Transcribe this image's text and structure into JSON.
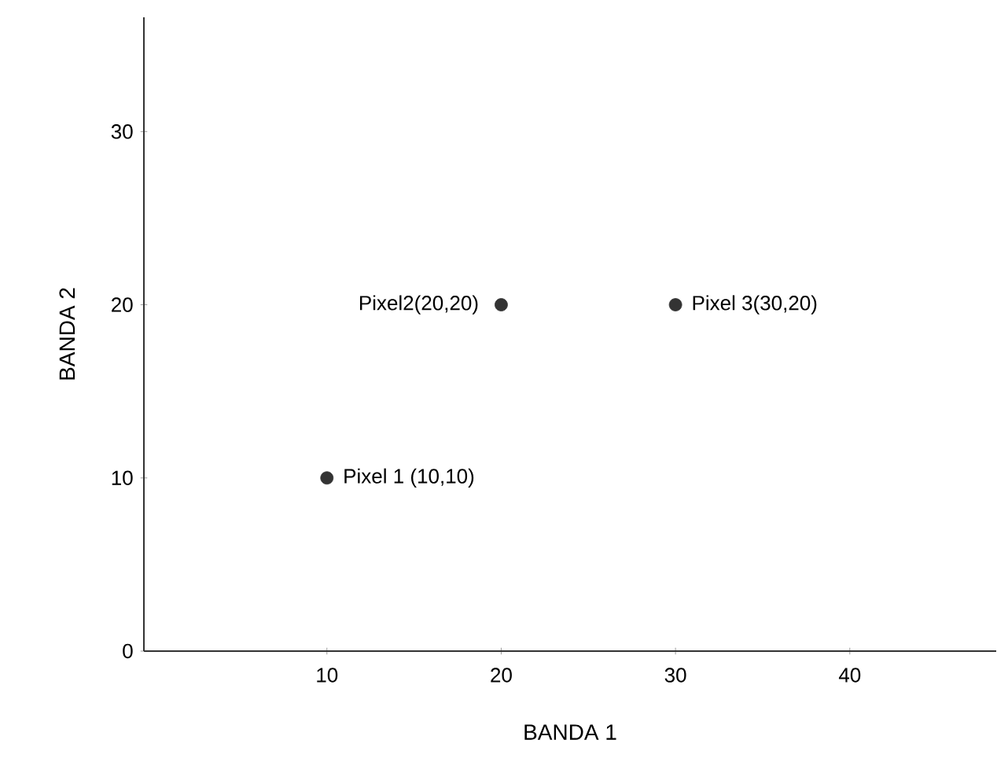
{
  "chart_data": {
    "type": "scatter",
    "xlabel": "BANDA 1",
    "ylabel": "BANDA 2",
    "x": [
      10,
      20,
      30
    ],
    "values": [
      10,
      20,
      20
    ],
    "color": "#333333",
    "marker": "circle",
    "xlim": [
      -0.5,
      48.4
    ],
    "ylim": [
      0,
      36.6
    ],
    "xticks": [
      10,
      20,
      30,
      40
    ],
    "yticks": [
      0,
      10,
      20,
      30
    ],
    "annotations": [
      {
        "text": "Pixel 1 (10,10)",
        "x": 10,
        "y": 10
      },
      {
        "text": "Pixel2(20,20)",
        "x": 20,
        "y": 20
      },
      {
        "text": "Pixel 3(30,20)",
        "x": 30,
        "y": 20
      }
    ]
  }
}
